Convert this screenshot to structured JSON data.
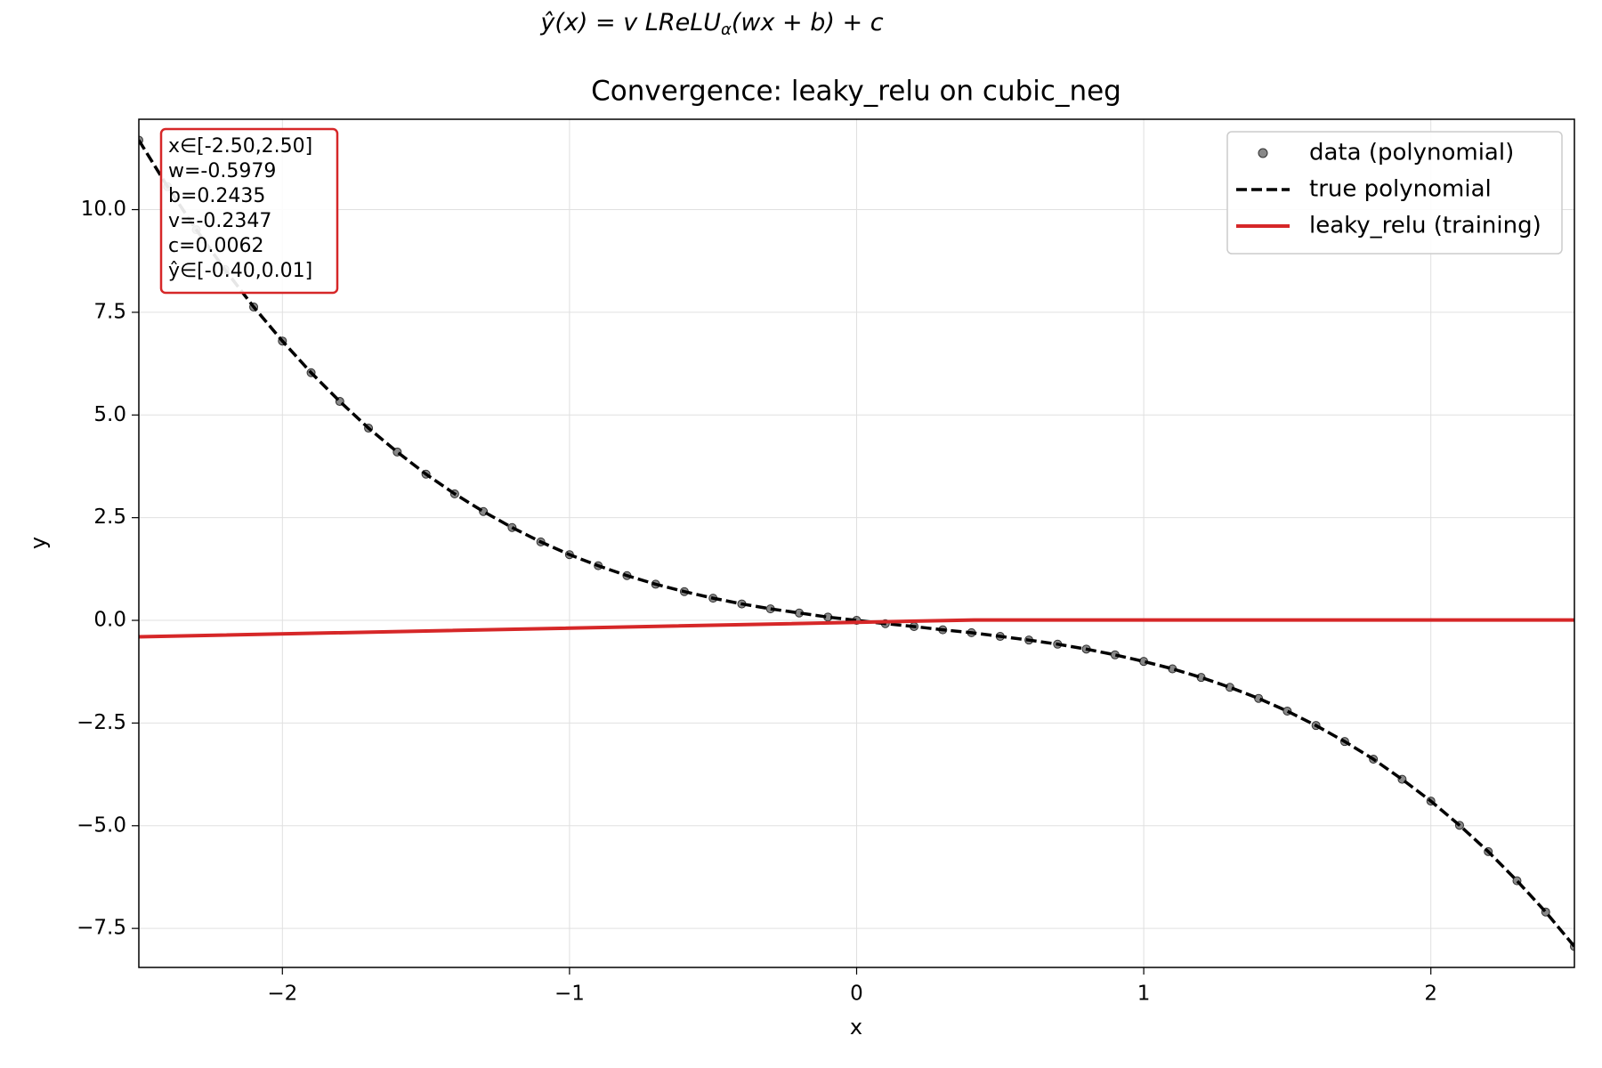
{
  "chart_data": {
    "type": "line",
    "suptitle": [
      "ŷ(x) = v LReLU",
      "α",
      "(wx + b) + c"
    ],
    "title": "Convergence: leaky_relu on cubic_neg",
    "xlabel": "x",
    "ylabel": "y",
    "xlim": [
      -2.5,
      2.5
    ],
    "ylim": [
      -8.45,
      12.2
    ],
    "xticks": [
      {
        "value": -2,
        "label": "−2"
      },
      {
        "value": -1,
        "label": "−1"
      },
      0,
      1,
      2
    ],
    "yticks": [
      {
        "value": -7.5,
        "label": "−7.5"
      },
      {
        "value": -5,
        "label": "−5.0"
      },
      {
        "value": -2.5,
        "label": "−2.5"
      },
      {
        "value": 0,
        "label": "0.0"
      },
      2.5,
      {
        "value": 5,
        "label": "5.0"
      },
      7.5,
      {
        "value": 10,
        "label": "10.0"
      }
    ],
    "grid": true,
    "legend": "upper right",
    "annotation": [
      "x∈[-2.50,2.50]",
      "w=-0.5979",
      "b=0.2435",
      "v=-0.2347",
      "c=0.0062",
      "ŷ∈[-0.40,0.01]"
    ],
    "x": [
      -2.5,
      -2.4,
      -2.3,
      -2.2,
      -2.1,
      -2.0,
      -1.9,
      -1.8,
      -1.7,
      -1.6,
      -1.5,
      -1.4,
      -1.3,
      -1.2,
      -1.1,
      -1.0,
      -0.9,
      -0.8,
      -0.7,
      -0.6,
      -0.5,
      -0.4,
      -0.3,
      -0.2,
      -0.1,
      0,
      0.1,
      0.2,
      0.3,
      0.4,
      0.5,
      0.6,
      0.7,
      0.8,
      0.9,
      1.0,
      1.1,
      1.2,
      1.3,
      1.4,
      1.5,
      1.6,
      1.7,
      1.8,
      1.9,
      2.0,
      2.1,
      2.2,
      2.3,
      2.4,
      2.5
    ],
    "series": [
      {
        "name": "data (polynomial)",
        "kind": "scatter",
        "color": "#555555",
        "values": [
          11.69,
          10.56,
          9.51,
          8.54,
          7.63,
          6.8,
          6.03,
          5.33,
          4.68,
          4.1,
          3.56,
          3.08,
          2.65,
          2.26,
          1.91,
          1.6,
          1.33,
          1.09,
          0.88,
          0.7,
          0.54,
          0.4,
          0.28,
          0.18,
          0.08,
          0,
          -0.08,
          -0.15,
          -0.23,
          -0.3,
          -0.39,
          -0.48,
          -0.58,
          -0.7,
          -0.84,
          -1.0,
          -1.18,
          -1.39,
          -1.63,
          -1.9,
          -2.21,
          -2.56,
          -2.95,
          -3.38,
          -3.87,
          -4.4,
          -4.99,
          -5.63,
          -6.34,
          -7.1,
          -7.94
        ]
      },
      {
        "name": "true polynomial",
        "kind": "dashed",
        "color": "#000000",
        "values": [
          11.69,
          10.56,
          9.51,
          8.54,
          7.63,
          6.8,
          6.03,
          5.33,
          4.68,
          4.1,
          3.56,
          3.08,
          2.65,
          2.26,
          1.91,
          1.6,
          1.33,
          1.09,
          0.88,
          0.7,
          0.54,
          0.4,
          0.28,
          0.18,
          0.08,
          0,
          -0.08,
          -0.15,
          -0.23,
          -0.3,
          -0.39,
          -0.48,
          -0.58,
          -0.7,
          -0.84,
          -1.0,
          -1.18,
          -1.39,
          -1.63,
          -1.9,
          -2.21,
          -2.56,
          -2.95,
          -3.38,
          -3.87,
          -4.4,
          -4.99,
          -5.63,
          -6.34,
          -7.1,
          -7.94
        ]
      },
      {
        "name": "leaky_relu (training)",
        "kind": "solid",
        "color": "#d62728",
        "x": [
          -2.5,
          0.41,
          2.5
        ],
        "values": [
          -0.4,
          0.01,
          0.01
        ]
      }
    ]
  }
}
